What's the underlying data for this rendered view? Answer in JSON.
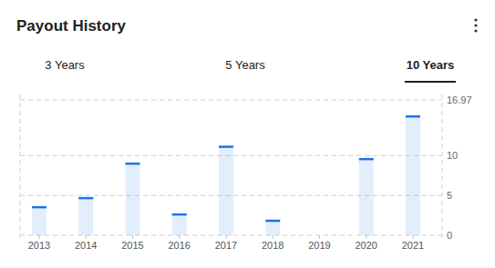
{
  "tabs": [
    {
      "label": "3 Years",
      "selected": false
    },
    {
      "label": "5 Years",
      "selected": false
    },
    {
      "label": "10 Years",
      "selected": true
    }
  ],
  "chart_data": {
    "type": "bar",
    "title": "Payout History",
    "categories": [
      "2013",
      "2014",
      "2015",
      "2016",
      "2017",
      "2018",
      "2019",
      "2020",
      "2021"
    ],
    "values": [
      3.52,
      4.66,
      8.98,
      2.61,
      11.1,
      1.82,
      null,
      9.55,
      14.9
    ],
    "color": "#1a73e8",
    "ylim": [
      0,
      16.97
    ],
    "yticks": [
      0,
      5,
      10,
      16.97
    ],
    "grid": true
  }
}
